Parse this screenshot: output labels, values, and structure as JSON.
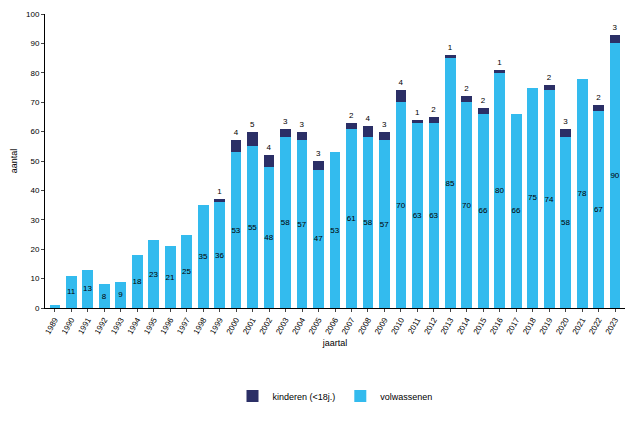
{
  "chart_data": {
    "type": "bar",
    "stacked": true,
    "data_labels": true,
    "grid": false,
    "legend": "bottom",
    "x_label": "jaartal",
    "y_label": "aantal",
    "categories": [
      "1989",
      "1990",
      "1991",
      "1992",
      "1993",
      "1994",
      "1995",
      "1996",
      "1997",
      "1998",
      "1999",
      "2000",
      "2001",
      "2002",
      "2003",
      "2004",
      "2005",
      "2006",
      "2007",
      "2008",
      "2009",
      "2010",
      "2011",
      "2012",
      "2013",
      "2014",
      "2015",
      "2016",
      "2017",
      "2018",
      "2019",
      "2020",
      "2021",
      "2022",
      "2023"
    ],
    "ylim": [
      0,
      100
    ],
    "yticks": [
      0,
      10,
      20,
      30,
      40,
      50,
      60,
      70,
      80,
      90,
      100
    ],
    "series": [
      {
        "name": "volwassenen",
        "color": "#33bbee",
        "values": [
          1,
          11,
          13,
          8,
          9,
          18,
          23,
          21,
          25,
          35,
          36,
          53,
          55,
          48,
          58,
          57,
          47,
          53,
          61,
          58,
          57,
          70,
          63,
          63,
          85,
          70,
          66,
          80,
          66,
          75,
          74,
          58,
          78,
          67,
          90
        ],
        "value_labels": [
          null,
          "11",
          "13",
          "8",
          "9",
          "18",
          "23",
          "21",
          "25",
          "35",
          "36",
          "53",
          "55",
          "48",
          "58",
          "57",
          "47",
          "53",
          "61",
          "58",
          "57",
          "70",
          "63",
          "63",
          "85",
          "70",
          "66",
          "80",
          "66",
          "75",
          "74",
          "58",
          "78",
          "67",
          "90"
        ]
      },
      {
        "name": "kinderen (<18j.)",
        "color": "#2b2f66",
        "values": [
          null,
          null,
          null,
          null,
          null,
          null,
          null,
          null,
          null,
          null,
          1,
          4,
          5,
          4,
          3,
          3,
          3,
          null,
          2,
          4,
          3,
          4,
          1,
          2,
          1,
          2,
          2,
          1,
          null,
          null,
          2,
          3,
          null,
          2,
          3
        ]
      }
    ]
  }
}
